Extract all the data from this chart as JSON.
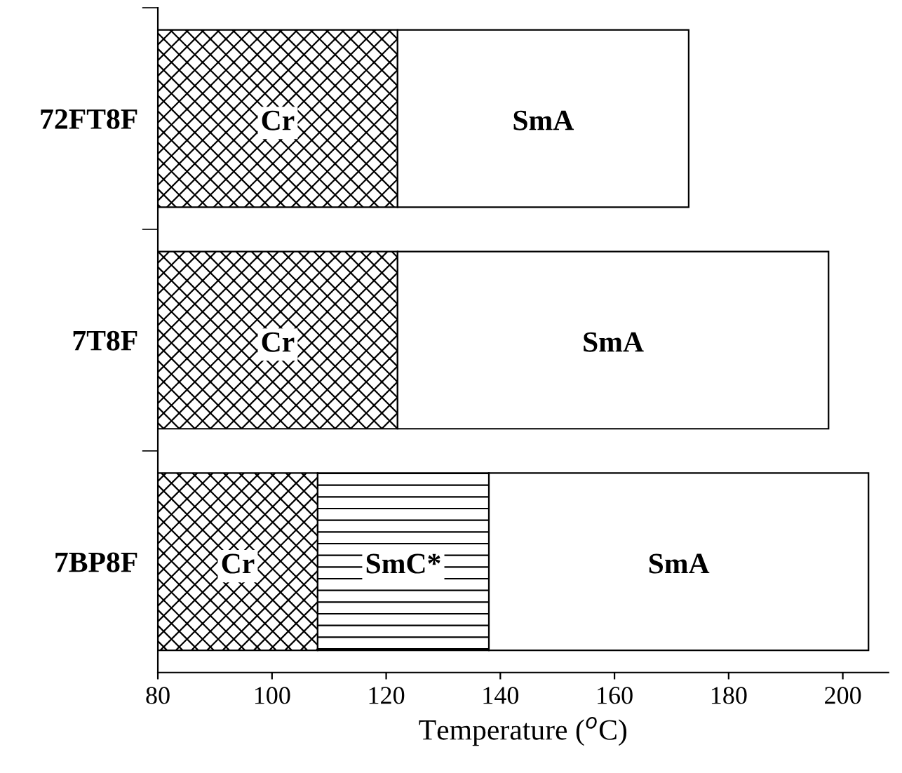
{
  "chart_data": {
    "type": "bar",
    "orientation": "horizontal",
    "categories": [
      "72FT8F",
      "7T8F",
      "7BP8F"
    ],
    "series": [
      {
        "name": "Cr",
        "color": "#000000",
        "base": [
          80,
          80,
          80
        ],
        "values": [
          42,
          42,
          28
        ]
      },
      {
        "name": "SmC*",
        "color": "#000000",
        "base": [
          null,
          null,
          108
        ],
        "values": [
          null,
          null,
          30
        ]
      },
      {
        "name": "SmA",
        "color": "#ffffff",
        "base": [
          122,
          122,
          138
        ],
        "values": [
          51,
          75.5,
          66.5
        ]
      }
    ],
    "xlabel": "Temperature ($^{o}$C)",
    "xlim": [
      80,
      208
    ],
    "xticks": [
      80,
      100,
      120,
      140,
      160,
      180,
      200
    ],
    "grid": false,
    "legend": false
  }
}
